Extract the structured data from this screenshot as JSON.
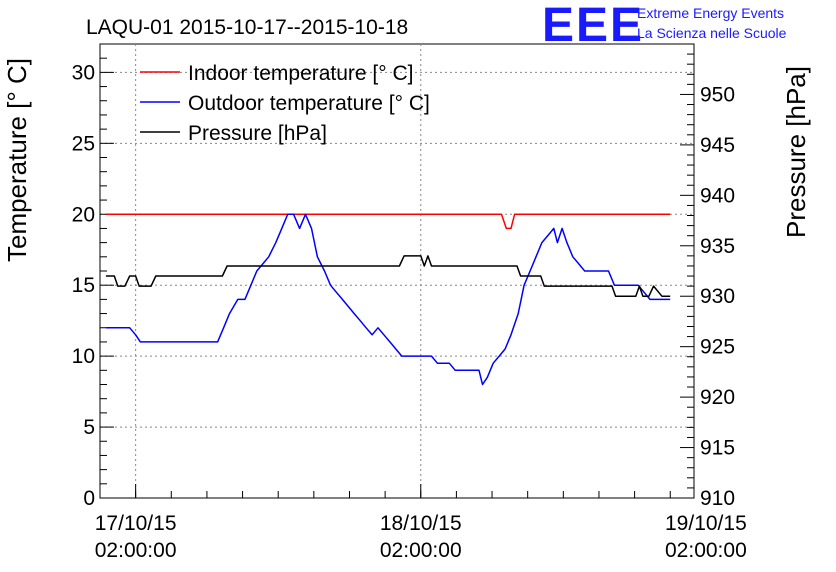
{
  "title": "LAQU-01 2015-10-17--2015-10-18",
  "logo": {
    "mark": "EEE",
    "line1": "Extreme Energy Events",
    "line2": "La Scienza nelle Scuole"
  },
  "colors": {
    "indoor": "#ff0000",
    "outdoor": "#0000ff",
    "pressure": "#000000",
    "logo": "#1a1aff"
  },
  "chart_data": {
    "type": "line",
    "title": "LAQU-01 2015-10-17--2015-10-18",
    "xlabel": "",
    "ylabel": "Temperature [° C]",
    "ylabel_right": "Pressure [hPa]",
    "x_unit": "hours since 17/10/15 00:00",
    "xlim": [
      -1,
      49
    ],
    "ylim": [
      0,
      32
    ],
    "ylim_right": [
      910,
      955
    ],
    "x_ticks": [
      {
        "x": 2,
        "date": "17/10/15",
        "time": "02:00:00"
      },
      {
        "x": 26,
        "date": "18/10/15",
        "time": "02:00:00"
      },
      {
        "x": 50,
        "date": "19/10/15",
        "time": "02:00:00"
      }
    ],
    "y_ticks_left": [
      0,
      5,
      10,
      15,
      20,
      25,
      30
    ],
    "y_ticks_right": [
      910,
      915,
      920,
      925,
      930,
      935,
      940,
      945,
      950
    ],
    "grid": true,
    "legend": {
      "position": "top-left"
    },
    "series": [
      {
        "name": "Indoor temperature [° C]",
        "color": "#ff0000",
        "axis": "left",
        "points": [
          [
            -0.5,
            20
          ],
          [
            32.8,
            20
          ],
          [
            33.2,
            19
          ],
          [
            33.6,
            19
          ],
          [
            33.9,
            20
          ],
          [
            47.0,
            20
          ]
        ]
      },
      {
        "name": "Outdoor temperature [° C]",
        "color": "#0000ff",
        "axis": "left",
        "points": [
          [
            -0.5,
            12
          ],
          [
            1.5,
            12
          ],
          [
            2.0,
            11.5
          ],
          [
            2.4,
            11
          ],
          [
            8.9,
            11
          ],
          [
            9.4,
            12
          ],
          [
            9.9,
            13
          ],
          [
            10.6,
            14
          ],
          [
            11.2,
            14
          ],
          [
            11.7,
            15
          ],
          [
            12.2,
            16
          ],
          [
            12.7,
            16.5
          ],
          [
            13.2,
            17
          ],
          [
            13.8,
            18
          ],
          [
            14.3,
            19
          ],
          [
            14.8,
            20
          ],
          [
            15.3,
            20
          ],
          [
            15.8,
            19
          ],
          [
            16.3,
            20
          ],
          [
            16.8,
            19
          ],
          [
            17.3,
            17
          ],
          [
            17.9,
            16
          ],
          [
            18.4,
            15
          ],
          [
            18.9,
            14.5
          ],
          [
            19.4,
            14
          ],
          [
            19.9,
            13.5
          ],
          [
            20.4,
            13
          ],
          [
            20.9,
            12.5
          ],
          [
            21.4,
            12
          ],
          [
            21.9,
            11.5
          ],
          [
            22.4,
            12
          ],
          [
            22.9,
            11.5
          ],
          [
            23.4,
            11
          ],
          [
            23.9,
            10.5
          ],
          [
            24.4,
            10
          ],
          [
            26.9,
            10
          ],
          [
            27.4,
            9.5
          ],
          [
            28.4,
            9.5
          ],
          [
            28.9,
            9
          ],
          [
            30.9,
            9
          ],
          [
            31.2,
            8
          ],
          [
            31.6,
            8.5
          ],
          [
            32.1,
            9.5
          ],
          [
            32.6,
            10
          ],
          [
            33.1,
            10.5
          ],
          [
            33.6,
            11.5
          ],
          [
            34.2,
            13
          ],
          [
            34.7,
            15
          ],
          [
            35.2,
            16
          ],
          [
            35.7,
            17
          ],
          [
            36.2,
            18
          ],
          [
            36.7,
            18.5
          ],
          [
            37.2,
            19
          ],
          [
            37.5,
            18
          ],
          [
            37.9,
            19
          ],
          [
            38.3,
            18
          ],
          [
            38.8,
            17
          ],
          [
            39.3,
            16.5
          ],
          [
            39.8,
            16
          ],
          [
            41.8,
            16
          ],
          [
            42.3,
            15
          ],
          [
            44.3,
            15
          ],
          [
            44.8,
            14.5
          ],
          [
            45.3,
            14
          ],
          [
            47.0,
            14
          ]
        ]
      },
      {
        "name": "Pressure [hPa]",
        "color": "#000000",
        "axis": "right",
        "points": [
          [
            -0.5,
            932
          ],
          [
            0.2,
            932
          ],
          [
            0.5,
            931
          ],
          [
            1.1,
            931
          ],
          [
            1.5,
            932
          ],
          [
            2.0,
            932
          ],
          [
            2.3,
            931
          ],
          [
            3.3,
            931
          ],
          [
            3.7,
            932
          ],
          [
            9.3,
            932
          ],
          [
            9.7,
            933
          ],
          [
            24.2,
            933
          ],
          [
            24.6,
            934
          ],
          [
            26.0,
            934
          ],
          [
            26.3,
            933
          ],
          [
            26.6,
            934
          ],
          [
            26.9,
            933
          ],
          [
            34.1,
            933
          ],
          [
            34.4,
            932
          ],
          [
            36.1,
            932
          ],
          [
            36.4,
            931
          ],
          [
            42.1,
            931
          ],
          [
            42.4,
            930
          ],
          [
            44.1,
            930
          ],
          [
            44.4,
            931
          ],
          [
            44.7,
            930
          ],
          [
            45.2,
            930
          ],
          [
            45.6,
            931
          ],
          [
            46.3,
            930
          ],
          [
            47.0,
            930
          ]
        ]
      }
    ]
  }
}
